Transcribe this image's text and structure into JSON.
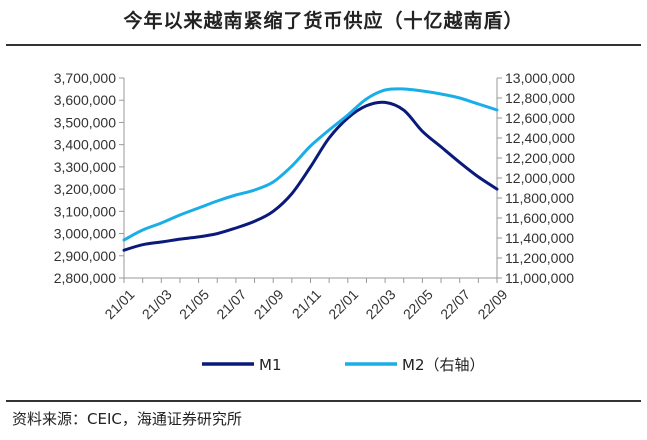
{
  "page": {
    "title": "今年以来越南紧缩了货币供应（十亿越南盾）",
    "source": "资料来源：CEIC，海通证券研究所"
  },
  "chart_data": {
    "type": "line",
    "title": "今年以来越南紧缩了货币供应（十亿越南盾）",
    "x": [
      "21/01",
      "21/02",
      "21/03",
      "21/04",
      "21/05",
      "21/06",
      "21/07",
      "21/08",
      "21/09",
      "21/10",
      "21/11",
      "21/12",
      "22/01",
      "22/02",
      "22/03",
      "22/04",
      "22/05",
      "22/06",
      "22/07",
      "22/08",
      "22/09"
    ],
    "x_tick_labels": [
      "21/01",
      "21/03",
      "21/05",
      "21/07",
      "21/09",
      "21/11",
      "22/01",
      "22/03",
      "22/05",
      "22/07",
      "22/09"
    ],
    "y_left": {
      "lim": [
        2800000,
        3700000
      ],
      "ticks": [
        2800000,
        2900000,
        3000000,
        3100000,
        3200000,
        3300000,
        3400000,
        3500000,
        3600000,
        3700000
      ],
      "tick_labels": [
        "2,800,000",
        "2,900,000",
        "3,000,000",
        "3,100,000",
        "3,200,000",
        "3,300,000",
        "3,400,000",
        "3,500,000",
        "3,600,000",
        "3,700,000"
      ]
    },
    "y_right": {
      "lim": [
        11000000,
        13000000
      ],
      "ticks": [
        11000000,
        11200000,
        11400000,
        11600000,
        11800000,
        12000000,
        12200000,
        12400000,
        12600000,
        12800000,
        13000000
      ],
      "tick_labels": [
        "11,000,000",
        "11,200,000",
        "11,400,000",
        "11,600,000",
        "11,800,000",
        "12,000,000",
        "12,200,000",
        "12,400,000",
        "12,600,000",
        "12,800,000",
        "13,000,000"
      ]
    },
    "series": [
      {
        "name": "M1",
        "axis": "left",
        "color": "#0a1a7a",
        "values": [
          2925000,
          2950000,
          2962000,
          2975000,
          2985000,
          3000000,
          3025000,
          3055000,
          3100000,
          3180000,
          3300000,
          3430000,
          3520000,
          3575000,
          3590000,
          3555000,
          3460000,
          3390000,
          3320000,
          3255000,
          3200000
        ]
      },
      {
        "name": "M2（右轴）",
        "axis": "right",
        "color": "#1aaee8",
        "values": [
          11380000,
          11480000,
          11550000,
          11630000,
          11700000,
          11770000,
          11830000,
          11880000,
          11960000,
          12120000,
          12320000,
          12480000,
          12630000,
          12790000,
          12880000,
          12890000,
          12870000,
          12840000,
          12800000,
          12740000,
          12680000
        ]
      }
    ],
    "legend": {
      "position": "bottom",
      "entries": [
        "M1",
        "M2（右轴）"
      ]
    }
  }
}
